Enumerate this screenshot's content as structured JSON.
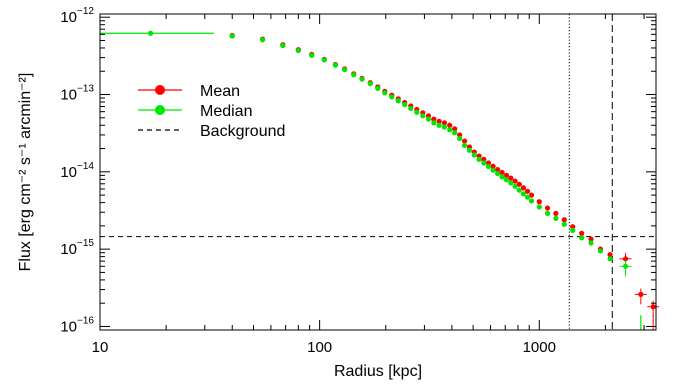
{
  "chart_data": {
    "type": "scatter",
    "title": "",
    "xlabel": "Radius [kpc]",
    "ylabel": "Flux [erg cm⁻² s⁻¹ arcmin⁻²]",
    "x_scale": "log",
    "y_scale": "log",
    "xlim": [
      10,
      3400
    ],
    "ylim": [
      9e-17,
      1.1e-12
    ],
    "x_ticks": [
      {
        "value": 10,
        "label": "10"
      },
      {
        "value": 100,
        "label": "100"
      },
      {
        "value": 1000,
        "label": "1000"
      }
    ],
    "y_ticks": [
      {
        "value": 1e-16,
        "mant": "10",
        "exp": "−16"
      },
      {
        "value": 1e-15,
        "mant": "10",
        "exp": "−15"
      },
      {
        "value": 1e-14,
        "mant": "10",
        "exp": "−14"
      },
      {
        "value": 1e-13,
        "mant": "10",
        "exp": "−13"
      },
      {
        "value": 1e-12,
        "mant": "10",
        "exp": "−12"
      }
    ],
    "legend_position": "upper-left",
    "background_level": 1.45e-15,
    "vertical_lines": [
      {
        "x": 1370,
        "style": "dotted"
      },
      {
        "x": 2150,
        "style": "dashed"
      }
    ],
    "series": [
      {
        "name": "Mean",
        "color": "#ff0000",
        "x": [
          40,
          55,
          68,
          80,
          92,
          105,
          118,
          130,
          143,
          156,
          170,
          184,
          198,
          213,
          228,
          244,
          260,
          277,
          295,
          313,
          331,
          350,
          370,
          391,
          412,
          434,
          457,
          481,
          506,
          532,
          559,
          587,
          616,
          646,
          677,
          709,
          742,
          776,
          811,
          847,
          884,
          922,
          1000,
          1090,
          1190,
          1300,
          1420,
          1560,
          1720,
          1900,
          2100,
          2470,
          2900,
          3300
        ],
        "y": [
          5.8e-13,
          5.2e-13,
          4.4e-13,
          3.8e-13,
          3.3e-13,
          2.85e-13,
          2.45e-13,
          2.15e-13,
          1.85e-13,
          1.62e-13,
          1.42e-13,
          1.25e-13,
          1.1e-13,
          9.8e-14,
          8.8e-14,
          7.9e-14,
          7.1e-14,
          6.4e-14,
          5.8e-14,
          5.3e-14,
          4.8e-14,
          4.5e-14,
          4.3e-14,
          4e-14,
          3.6e-14,
          3e-14,
          2.5e-14,
          2.1e-14,
          1.8e-14,
          1.6e-14,
          1.45e-14,
          1.3e-14,
          1.18e-14,
          1.07e-14,
          9.8e-15,
          9e-15,
          8.3e-15,
          7.6e-15,
          6.9e-15,
          6.2e-15,
          5.6e-15,
          5e-15,
          4.1e-15,
          3.4e-15,
          2.9e-15,
          2.4e-15,
          1.95e-15,
          1.6e-15,
          1.35e-15,
          1e-15,
          8.5e-16,
          7.5e-16,
          2.6e-16,
          1.8e-16
        ]
      },
      {
        "name": "Median",
        "color": "#00e600",
        "x": [
          17,
          40,
          55,
          68,
          80,
          92,
          105,
          118,
          130,
          143,
          156,
          170,
          184,
          198,
          213,
          228,
          244,
          260,
          277,
          295,
          313,
          331,
          350,
          370,
          391,
          412,
          434,
          457,
          481,
          506,
          532,
          559,
          587,
          616,
          646,
          677,
          709,
          742,
          776,
          811,
          847,
          884,
          922,
          1000,
          1090,
          1190,
          1300,
          1420,
          1560,
          1720,
          1900,
          2100,
          2470
        ],
        "y": [
          6.2e-13,
          5.7e-13,
          5.1e-13,
          4.3e-13,
          3.7e-13,
          3.2e-13,
          2.8e-13,
          2.4e-13,
          2.1e-13,
          1.8e-13,
          1.58e-13,
          1.38e-13,
          1.2e-13,
          1.05e-13,
          9.3e-14,
          8.3e-14,
          7.4e-14,
          6.6e-14,
          5.9e-14,
          5.3e-14,
          4.8e-14,
          4.3e-14,
          4e-14,
          3.8e-14,
          3.5e-14,
          3.2e-14,
          2.7e-14,
          2.2e-14,
          1.9e-14,
          1.65e-14,
          1.45e-14,
          1.3e-14,
          1.17e-14,
          1.05e-14,
          9.5e-15,
          8.6e-15,
          7.9e-15,
          7.2e-15,
          6.5e-15,
          5.8e-15,
          5.2e-15,
          4.7e-15,
          4.2e-15,
          3.5e-15,
          2.9e-15,
          2.5e-15,
          2.1e-15,
          1.75e-15,
          1.4e-15,
          1.2e-15,
          9.5e-16,
          7.5e-16,
          6e-16
        ]
      }
    ],
    "legend": [
      {
        "label": "Mean",
        "color": "#ff0000",
        "kind": "marker"
      },
      {
        "label": "Median",
        "color": "#00e600",
        "kind": "marker"
      },
      {
        "label": "Background",
        "color": "#000000",
        "kind": "dashed"
      }
    ]
  }
}
